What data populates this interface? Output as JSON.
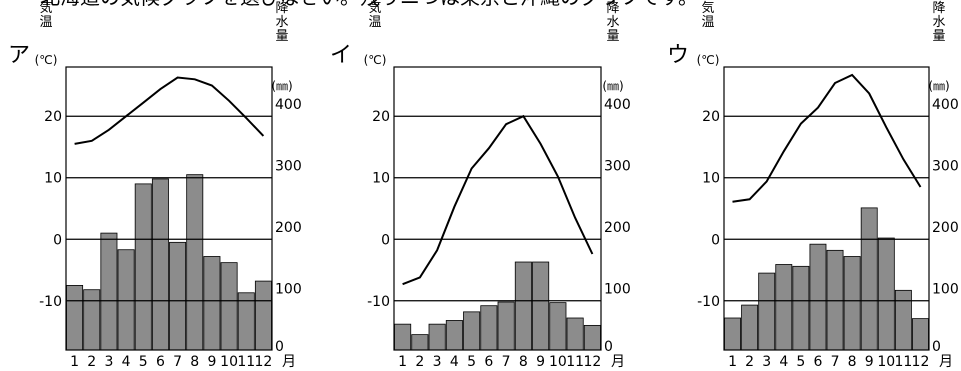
{
  "header_text": "・北海道の気候グラフを選びなさい。残りニつは東京と沖縄のグラフです。",
  "colors": {
    "bar": "#8c8c8c",
    "line": "#000000",
    "grid": "#000000",
    "background": "#ffffff"
  },
  "chart_data": [
    {
      "type": "bar+line",
      "panel_label": "ア",
      "y1_label": "気温",
      "y1_unit": "(℃)",
      "y2_label": "降水量",
      "y2_unit": "(㎜)",
      "y1_ticks": [
        "20",
        "10",
        "0",
        "-10"
      ],
      "y1_tick_values": [
        20,
        10,
        0,
        -10
      ],
      "y2_ticks": [
        "400",
        "300",
        "200",
        "100",
        "0"
      ],
      "y2_tick_values": [
        400,
        300,
        200,
        100,
        0
      ],
      "month_unit": "月",
      "categories": [
        "1",
        "2",
        "3",
        "4",
        "5",
        "6",
        "7",
        "8",
        "9",
        "10",
        "11",
        "12"
      ],
      "temperature": [
        15.5,
        16.0,
        17.8,
        20.0,
        22.2,
        24.4,
        26.3,
        26.0,
        25.0,
        22.5,
        19.7,
        16.8
      ],
      "precipitation": [
        105,
        98,
        190,
        163,
        270,
        278,
        175,
        285,
        152,
        142,
        93,
        112
      ],
      "y1_range": [
        -18,
        28
      ],
      "y2_range": [
        0,
        460
      ]
    },
    {
      "type": "bar+line",
      "panel_label": "イ",
      "y1_label": "気温",
      "y1_unit": "(℃)",
      "y2_label": "降水量",
      "y2_unit": "(㎜)",
      "y1_ticks": [
        "20",
        "10",
        "0",
        "-10"
      ],
      "y1_tick_values": [
        20,
        10,
        0,
        -10
      ],
      "y2_ticks": [
        "400",
        "300",
        "200",
        "100",
        "0"
      ],
      "y2_tick_values": [
        400,
        300,
        200,
        100,
        0
      ],
      "month_unit": "月",
      "categories": [
        "1",
        "2",
        "3",
        "4",
        "5",
        "6",
        "7",
        "8",
        "9",
        "10",
        "11",
        "12"
      ],
      "temperature": [
        -7.3,
        -6.2,
        -1.8,
        5.3,
        11.5,
        14.8,
        18.7,
        20.0,
        15.5,
        10.2,
        3.5,
        -2.4
      ],
      "precipitation": [
        42,
        25,
        42,
        48,
        62,
        72,
        78,
        143,
        143,
        77,
        52,
        40
      ],
      "y1_range": [
        -18,
        28
      ],
      "y2_range": [
        0,
        460
      ]
    },
    {
      "type": "bar+line",
      "panel_label": "ウ",
      "y1_label": "気温",
      "y1_unit": "(℃)",
      "y2_label": "降水量",
      "y2_unit": "(㎜)",
      "y1_ticks": [
        "20",
        "10",
        "0",
        "-10"
      ],
      "y1_tick_values": [
        20,
        10,
        0,
        -10
      ],
      "y2_ticks": [
        "400",
        "300",
        "200",
        "100",
        "0"
      ],
      "y2_tick_values": [
        400,
        300,
        200,
        100,
        0
      ],
      "month_unit": "月",
      "categories": [
        "1",
        "2",
        "3",
        "4",
        "5",
        "6",
        "7",
        "8",
        "9",
        "10",
        "11",
        "12"
      ],
      "temperature": [
        6.1,
        6.5,
        9.4,
        14.3,
        18.8,
        21.4,
        25.4,
        26.7,
        23.7,
        18.2,
        13.0,
        8.5
      ],
      "precipitation": [
        52,
        73,
        125,
        139,
        136,
        172,
        162,
        152,
        231,
        182,
        97,
        51
      ],
      "y1_range": [
        -18,
        28
      ],
      "y2_range": [
        0,
        460
      ]
    }
  ]
}
